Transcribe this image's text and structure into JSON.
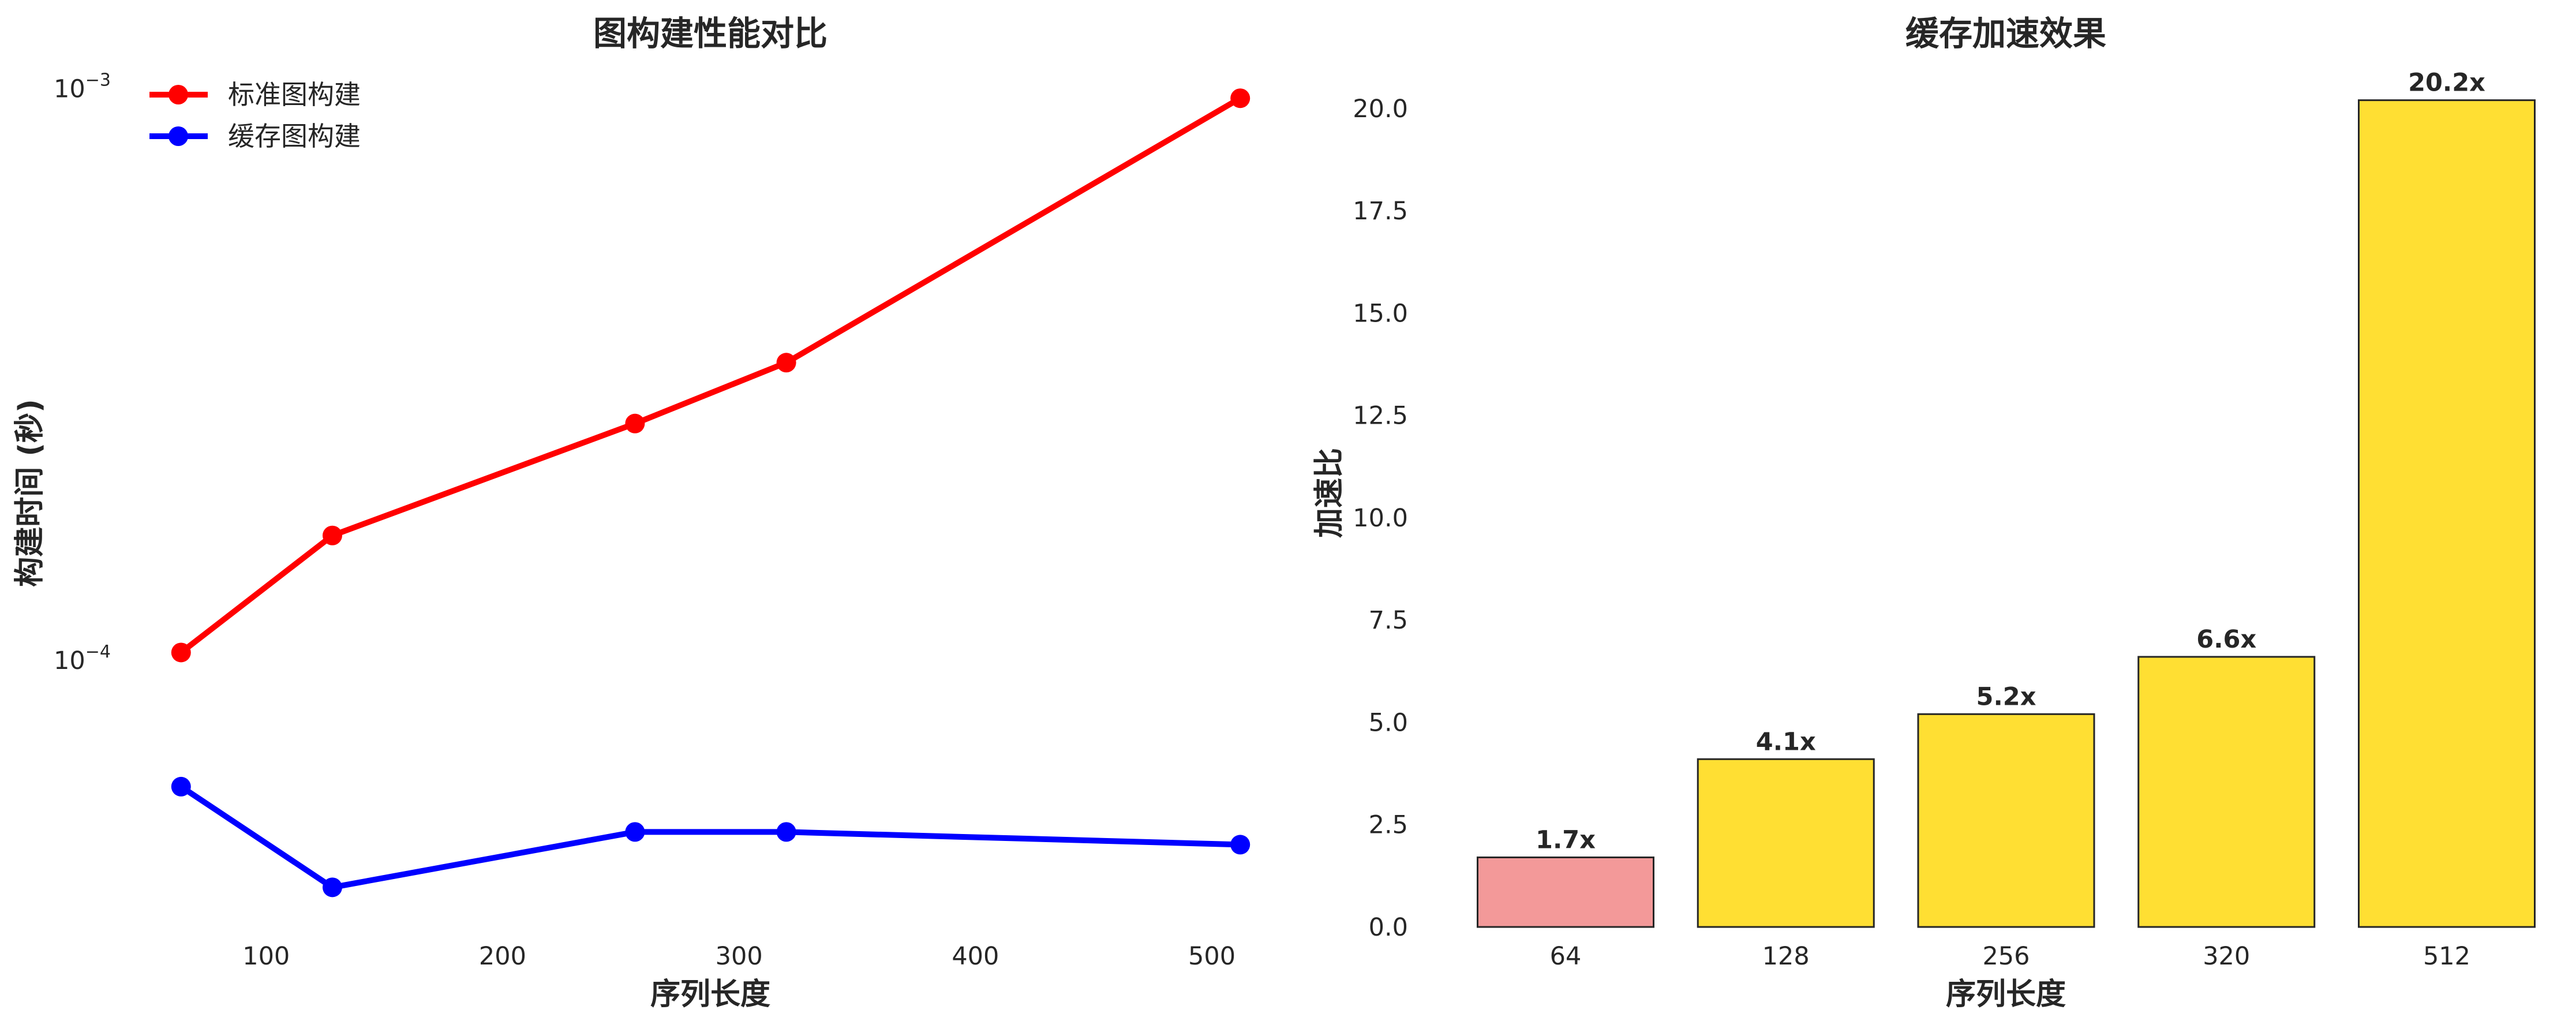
{
  "chart_data": [
    {
      "type": "line",
      "title": "图构建性能对比",
      "xlabel": "序列长度",
      "ylabel": "构建时间 (秒)",
      "yscale": "log",
      "x": [
        64,
        128,
        256,
        320,
        512
      ],
      "series": [
        {
          "name": "标准图构建",
          "color": "#ff0000",
          "values": [
            0.000103,
            0.000165,
            0.000259,
            0.000331,
            0.00096
          ]
        },
        {
          "name": "缓存图构建",
          "color": "#0000ff",
          "values": [
            6e-05,
            4e-05,
            5e-05,
            5e-05,
            4.75e-05
          ]
        }
      ],
      "xlim": [
        41.6,
        534.4
      ],
      "ylim": [
        3.41e-05,
        0.001125
      ],
      "x_ticks": [
        100,
        200,
        300,
        400,
        500
      ],
      "y_ticks": [
        {
          "value": 0.0001,
          "base": "10",
          "exp": "−4"
        },
        {
          "value": 0.001,
          "base": "10",
          "exp": "−3"
        }
      ],
      "grid": false,
      "legend": "top-left"
    },
    {
      "type": "bar",
      "title": "缓存加速效果",
      "xlabel": "序列长度",
      "ylabel": "加速比",
      "categories": [
        "64",
        "128",
        "256",
        "320",
        "512"
      ],
      "values": [
        1.7,
        4.1,
        5.2,
        6.6,
        20.2
      ],
      "labels": [
        "1.7x",
        "4.1x",
        "5.2x",
        "6.6x",
        "20.2x"
      ],
      "colors": [
        "#f39999",
        "#ffdf33",
        "#ffdf33",
        "#ffdf33",
        "#ffdf33"
      ],
      "edge_color": "#262626",
      "ylim": [
        0,
        21.21
      ],
      "y_ticks": [
        0,
        2.5,
        5,
        7.5,
        10,
        12.5,
        15,
        17.5,
        20
      ],
      "y_tick_labels": [
        "0.0",
        "2.5",
        "5.0",
        "7.5",
        "10.0",
        "12.5",
        "15.0",
        "17.5",
        "20.0"
      ],
      "grid": false
    }
  ]
}
